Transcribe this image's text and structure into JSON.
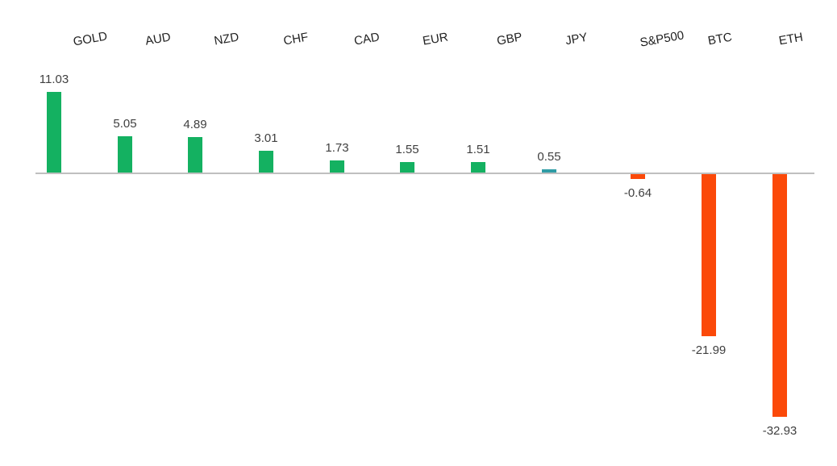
{
  "chart_data": {
    "type": "bar",
    "title": "",
    "xlabel": "",
    "ylabel": "",
    "categories": [
      "GOLD",
      "AUD",
      "NZD",
      "CHF",
      "CAD",
      "EUR",
      "GBP",
      "JPY",
      "S&P500",
      "BTC",
      "ETH"
    ],
    "values": [
      11.03,
      5.05,
      4.89,
      3.01,
      1.73,
      1.55,
      1.51,
      0.55,
      -0.64,
      -21.99,
      -32.93
    ],
    "value_labels": [
      "11.03",
      "5.05",
      "4.89",
      "3.01",
      "1.73",
      "1.55",
      "1.51",
      "0.55",
      "-0.64",
      "-21.99",
      "-32.93"
    ],
    "bar_color_names": [
      "positive",
      "positive",
      "positive",
      "positive",
      "positive",
      "positive",
      "positive",
      "neutral",
      "negative",
      "negative",
      "negative"
    ],
    "colors": {
      "positive": "#14B161",
      "neutral": "#2F9CA5",
      "negative": "#FB4909",
      "axis": "#BFBFBF",
      "value_label": "#404040",
      "category_label": "#1F1F1F",
      "background": "#FFFFFF"
    },
    "ylim": [
      -35,
      12
    ],
    "baseline": 0,
    "grid": false,
    "legend": false,
    "yaxis_ticks_visible": false,
    "category_label_position": "above-plot",
    "category_label_rotation_deg": -10,
    "value_label_position": "outside-end"
  }
}
